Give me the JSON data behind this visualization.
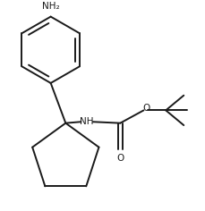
{
  "background": "#ffffff",
  "line_color": "#1a1a1a",
  "line_width": 1.4,
  "figsize": [
    2.3,
    2.36
  ],
  "dpi": 100,
  "labels": {
    "nh2": "NH₂",
    "nh": "NH",
    "o_carbonyl": "O",
    "o_ester": "O"
  },
  "font_size": 7.5
}
